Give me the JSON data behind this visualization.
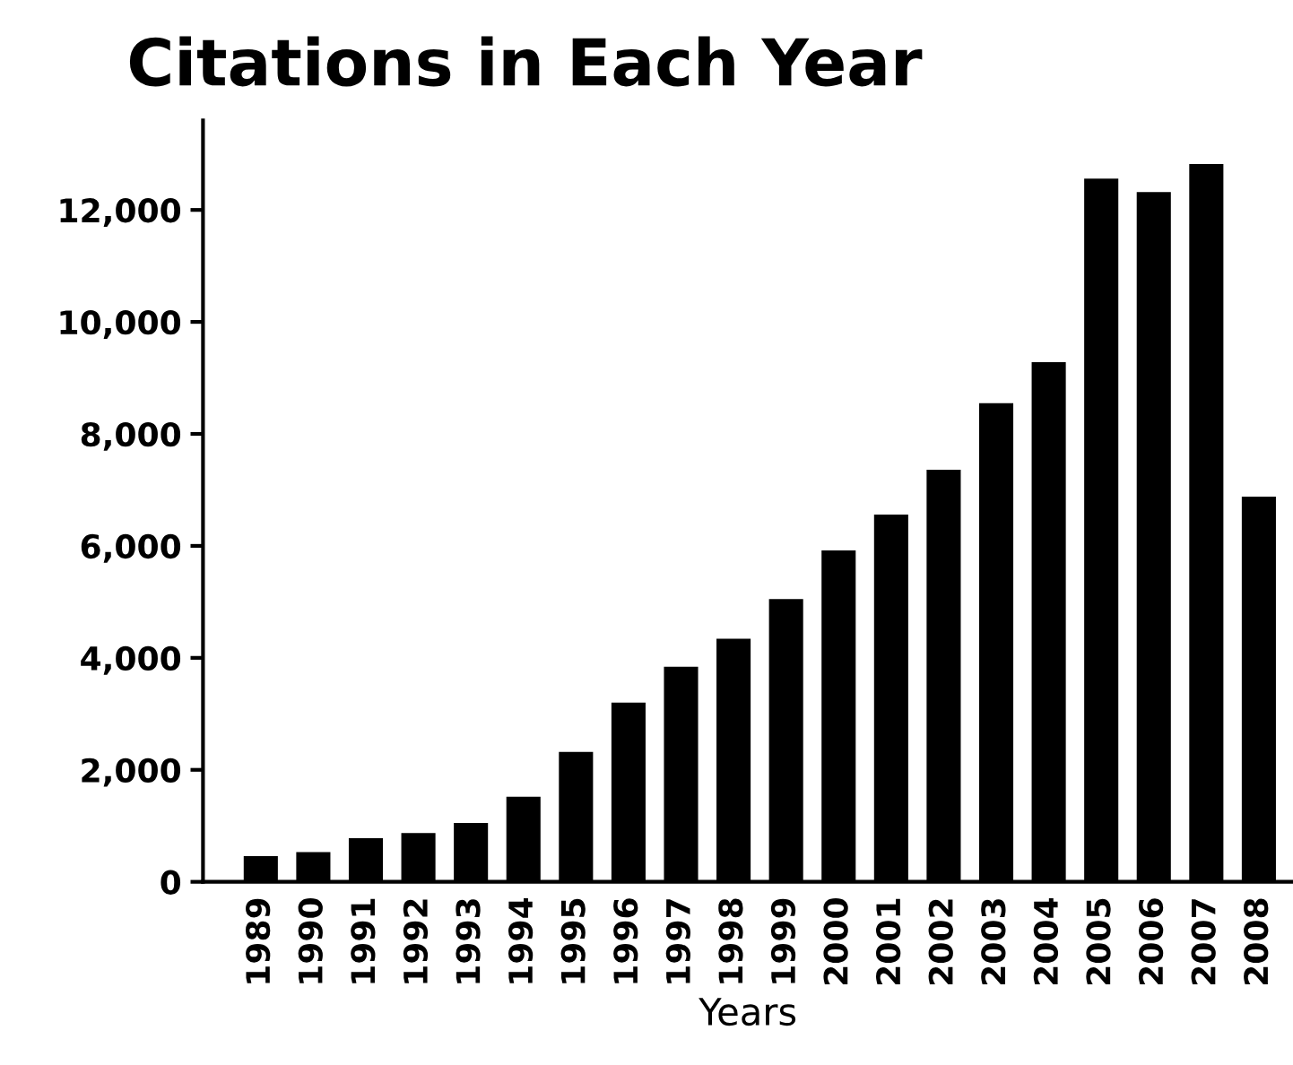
{
  "chart_data": {
    "type": "bar",
    "title": "Citations in Each Year",
    "xlabel": "Years",
    "categories": [
      "1989",
      "1990",
      "1991",
      "1992",
      "1993",
      "1994",
      "1995",
      "1996",
      "1997",
      "1998",
      "1999",
      "2000",
      "2001",
      "2002",
      "2003",
      "2004",
      "2005",
      "2006",
      "2007",
      "2008"
    ],
    "values": [
      460,
      530,
      780,
      870,
      1050,
      1520,
      2320,
      3200,
      3840,
      4340,
      5050,
      5920,
      6560,
      7360,
      8550,
      9280,
      12560,
      12320,
      12820,
      6880
    ],
    "color": "#000000",
    "ylim": [
      0,
      13600
    ],
    "yticks": [
      {
        "value": 0,
        "label": "0"
      },
      {
        "value": 2000,
        "label": "2,000"
      },
      {
        "value": 4000,
        "label": "4,000"
      },
      {
        "value": 6000,
        "label": "6,000"
      },
      {
        "value": 8000,
        "label": "8,000"
      },
      {
        "value": 10000,
        "label": "10,000"
      },
      {
        "value": 12000,
        "label": "12,000"
      }
    ],
    "grid": false
  }
}
